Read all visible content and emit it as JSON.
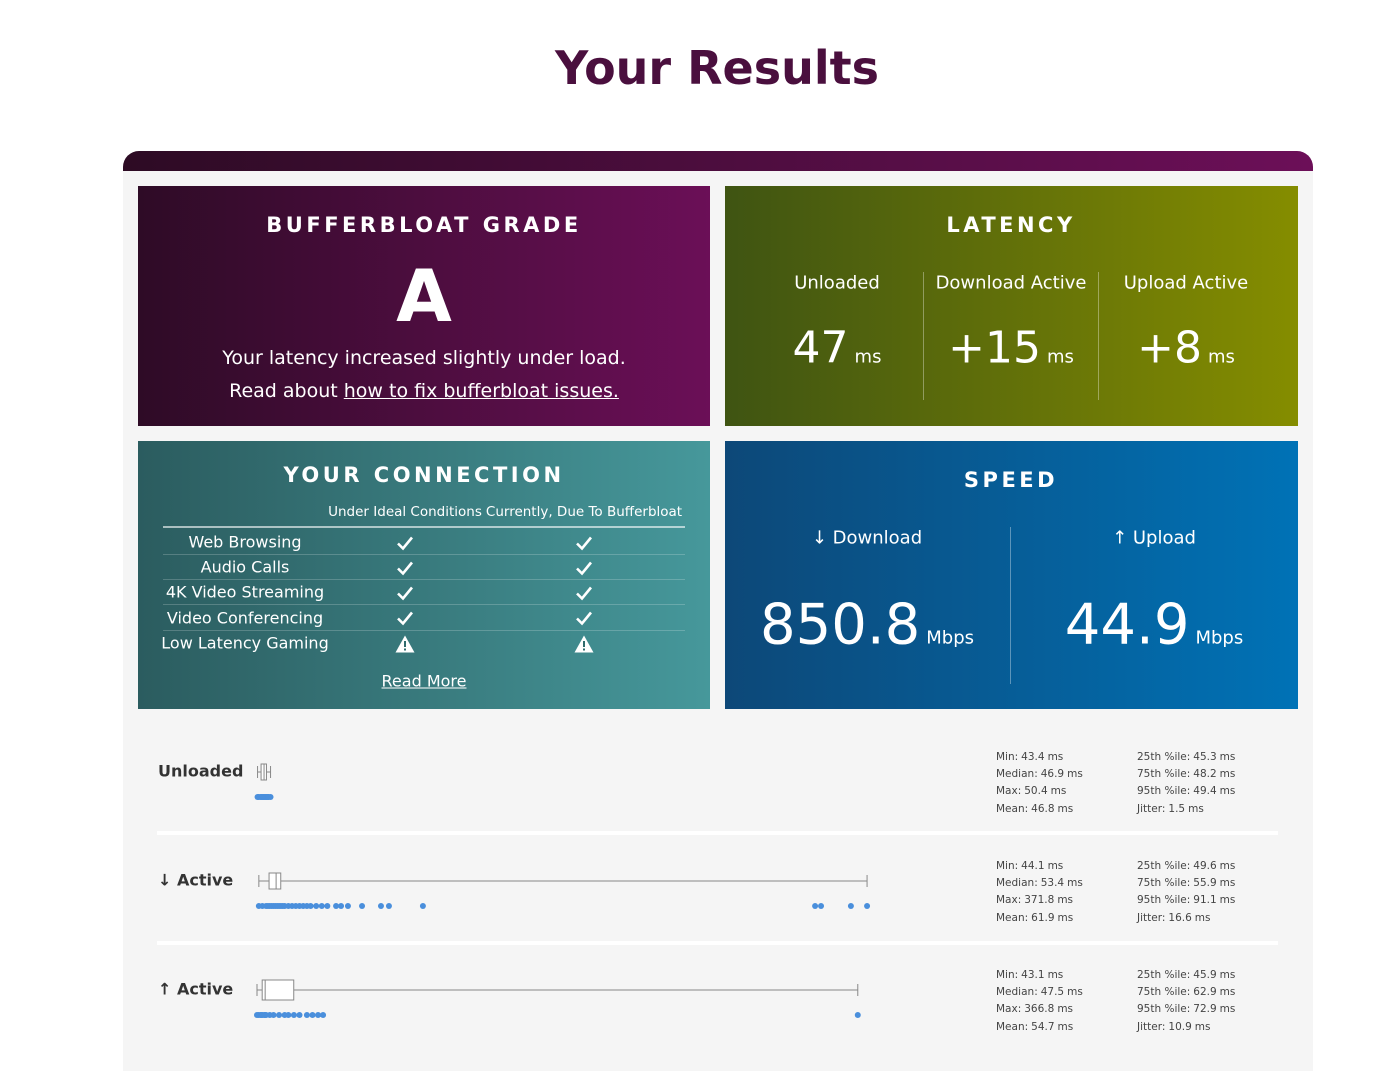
{
  "title": "Your Results",
  "grade": {
    "title": "BUFFERBLOAT GRADE",
    "grade": "A",
    "message": "Your latency increased slightly under load.",
    "read_prefix": "Read about",
    "link": "how to fix bufferbloat issues."
  },
  "latency": {
    "title": "LATENCY",
    "columns": [
      {
        "label": "Unloaded",
        "value": 47,
        "unit": "ms"
      },
      {
        "label": "Download Active",
        "value": "+15",
        "unit": "ms"
      },
      {
        "label": "Upload Active",
        "value": "+8",
        "unit": "ms"
      }
    ]
  },
  "connection": {
    "title": "YOUR CONNECTION",
    "headers": [
      "Under Ideal Conditions",
      "Currently, Due To Bufferbloat"
    ],
    "rows": [
      "Web Browsing",
      "Audio Calls",
      "4K Video Streaming",
      "Video Conferencing",
      "Low Latency Gaming"
    ],
    "link": "Read More"
  },
  "speed": {
    "title": "SPEED",
    "columns": [
      {
        "label": "↓ Download",
        "value": 850.8,
        "unit": "Mbps"
      },
      {
        "label": "↑ Upload",
        "value": 44.9,
        "unit": "Mbps"
      }
    ]
  },
  "latency_details": [
    {
      "label": "Unloaded",
      "stats": [
        {
          "label": "Min:",
          "value": 43.4,
          "unit": "ms"
        },
        {
          "label": "Median:",
          "value": 46.9,
          "unit": "ms"
        },
        {
          "label": "Max:",
          "value": 50.4,
          "unit": "ms"
        },
        {
          "label": "Mean:",
          "value": 46.8,
          "unit": "ms"
        },
        {
          "label": "25th %ile:",
          "value": 45.3,
          "unit": "ms"
        },
        {
          "label": "75th %ile:",
          "value": 48.2,
          "unit": "ms"
        },
        {
          "label": "95th %ile:",
          "value": 49.4,
          "unit": "ms"
        },
        {
          "label": "Jitter:",
          "value": 1.5,
          "unit": "ms"
        }
      ],
      "samples": [
        43.4,
        44,
        45,
        45.5,
        46,
        46.5,
        46.9,
        47.5,
        48,
        48.5,
        49,
        49.4,
        50.4
      ]
    },
    {
      "label": "↓ Active",
      "stats": [
        {
          "label": "Min:",
          "value": 44.1,
          "unit": "ms"
        },
        {
          "label": "Median:",
          "value": 53.4,
          "unit": "ms"
        },
        {
          "label": "Max:",
          "value": 371.8,
          "unit": "ms"
        },
        {
          "label": "Mean:",
          "value": 61.9,
          "unit": "ms"
        },
        {
          "label": "25th %ile:",
          "value": 49.6,
          "unit": "ms"
        },
        {
          "label": "75th %ile:",
          "value": 55.9,
          "unit": "ms"
        },
        {
          "label": "95th %ile:",
          "value": 91.1,
          "unit": "ms"
        },
        {
          "label": "Jitter:",
          "value": 16.6,
          "unit": "ms"
        }
      ],
      "samples": [
        44.1,
        46,
        48,
        49,
        50,
        51,
        52,
        53,
        54,
        55,
        56,
        57,
        58,
        60,
        62,
        64,
        66,
        68,
        70,
        72,
        75,
        78,
        81,
        85.7,
        88.4,
        92.1,
        99.7,
        109.9,
        114.2,
        132.5,
        343.8,
        347,
        363.1,
        371.8
      ]
    },
    {
      "label": "↑ Active",
      "stats": [
        {
          "label": "Min:",
          "value": 43.1,
          "unit": "ms"
        },
        {
          "label": "Median:",
          "value": 47.5,
          "unit": "ms"
        },
        {
          "label": "Max:",
          "value": 366.8,
          "unit": "ms"
        },
        {
          "label": "Mean:",
          "value": 54.7,
          "unit": "ms"
        },
        {
          "label": "25th %ile:",
          "value": 45.9,
          "unit": "ms"
        },
        {
          "label": "75th %ile:",
          "value": 62.9,
          "unit": "ms"
        },
        {
          "label": "95th %ile:",
          "value": 72.9,
          "unit": "ms"
        },
        {
          "label": "Jitter:",
          "value": 10.9,
          "unit": "ms"
        }
      ],
      "samples": [
        43.1,
        44,
        45,
        45.5,
        46,
        47,
        47.5,
        48,
        50,
        52,
        55,
        58,
        60,
        63,
        66,
        70,
        73,
        76,
        78.7,
        366.8
      ]
    }
  ]
}
